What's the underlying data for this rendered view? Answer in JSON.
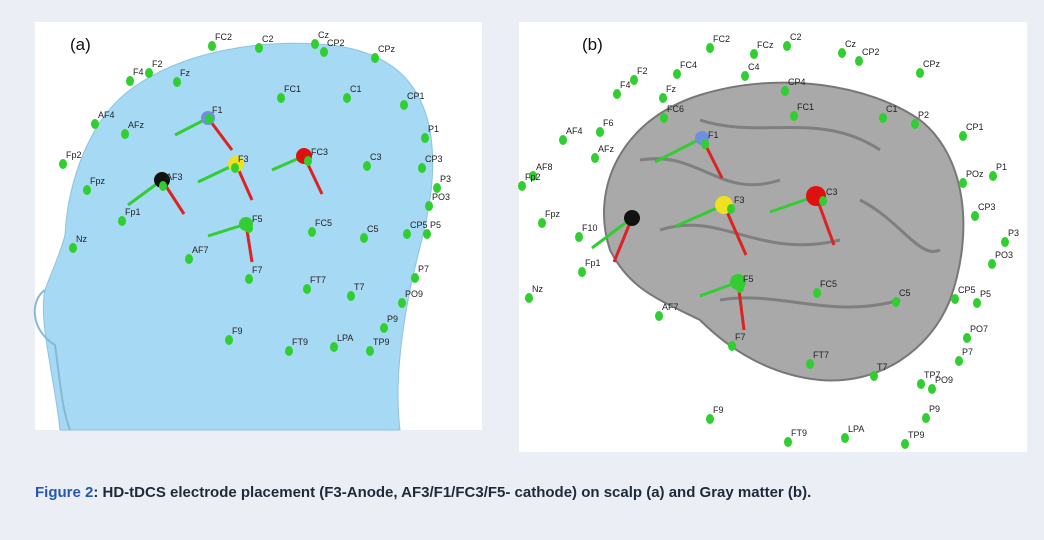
{
  "panels": [
    {
      "label": "(a)",
      "electrodes": [
        "FC2",
        "C2",
        "Cz",
        "CP2",
        "CPz",
        "F4",
        "F2",
        "Fz",
        "FC1",
        "C1",
        "CP1",
        "AF4",
        "AFz",
        "F1",
        "F3",
        "FC3",
        "C3",
        "P1",
        "CP3",
        "P3",
        "PO3",
        "Fp2",
        "Fpz",
        "AF3",
        "Fp1",
        "F5",
        "FC5",
        "C5",
        "CP5",
        "P5",
        "Nz",
        "AF7",
        "F7",
        "FT7",
        "T7",
        "P7",
        "PO9",
        "P9",
        "F9",
        "FT9",
        "LPA",
        "TP9"
      ]
    },
    {
      "label": "(b)",
      "electrodes": [
        "FC2",
        "FCz",
        "C2",
        "Cz",
        "CP2",
        "CPz",
        "F2",
        "FC4",
        "C4",
        "CP4",
        "F4",
        "Fz",
        "F6",
        "FC6",
        "FC1",
        "C1",
        "P2",
        "CP1",
        "AF4",
        "F1",
        "AFz",
        "P1",
        "F3",
        "C3",
        "AF8",
        "POz",
        "CP3",
        "Fp2",
        "Fpz",
        "F10",
        "Fp1",
        "P3",
        "PO3",
        "Nz",
        "FC5",
        "C5",
        "CP5",
        "P5",
        "F5",
        "AF7",
        "F7",
        "PO7",
        "P7",
        "FT7",
        "T7",
        "TP7",
        "PO9",
        "P9",
        "F9",
        "FT9",
        "LPA",
        "TP9"
      ]
    }
  ],
  "caption": {
    "figure": "Figure 2",
    "text": ": HD-tDCS electrode placement (F3-Anode, AF3/F1/FC3/F5- cathode) on scalp (a) and Gray matter (b)."
  }
}
